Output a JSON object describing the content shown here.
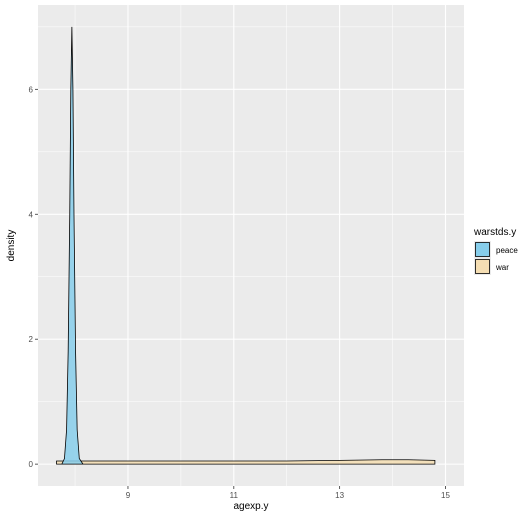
{
  "chart_data": {
    "type": "area",
    "xlabel": "agexp.y",
    "ylabel": "density",
    "xlim": [
      7.3,
      15.35
    ],
    "ylim": [
      -0.35,
      7.35
    ],
    "x_ticks": [
      9,
      11,
      13,
      15
    ],
    "x_minor": [
      8,
      10,
      12,
      14
    ],
    "y_ticks": [
      0,
      2,
      4,
      6
    ],
    "y_minor": [
      1,
      3,
      5,
      7
    ],
    "grid": true,
    "panel_background": "#EBEBEB",
    "legend": {
      "title": "warstds.y",
      "placement": "right"
    },
    "series": [
      {
        "name": "peace",
        "color": "#87CEEB",
        "points": [
          [
            7.75,
            0
          ],
          [
            7.8,
            0.09
          ],
          [
            7.84,
            0.55
          ],
          [
            7.87,
            1.8
          ],
          [
            7.9,
            4.0
          ],
          [
            7.92,
            6.0
          ],
          [
            7.94,
            7.0
          ],
          [
            7.96,
            6.0
          ],
          [
            7.98,
            4.0
          ],
          [
            8.01,
            1.8
          ],
          [
            8.04,
            0.55
          ],
          [
            8.08,
            0.09
          ],
          [
            8.15,
            0
          ]
        ]
      },
      {
        "name": "war",
        "color": "#F5DEB3",
        "points": [
          [
            7.65,
            0
          ],
          [
            7.65,
            0.05
          ],
          [
            8.5,
            0.05
          ],
          [
            10,
            0.05
          ],
          [
            11,
            0.05
          ],
          [
            12,
            0.05
          ],
          [
            13,
            0.06
          ],
          [
            13.8,
            0.07
          ],
          [
            14.3,
            0.07
          ],
          [
            14.8,
            0.06
          ],
          [
            14.8,
            0
          ]
        ]
      }
    ]
  }
}
